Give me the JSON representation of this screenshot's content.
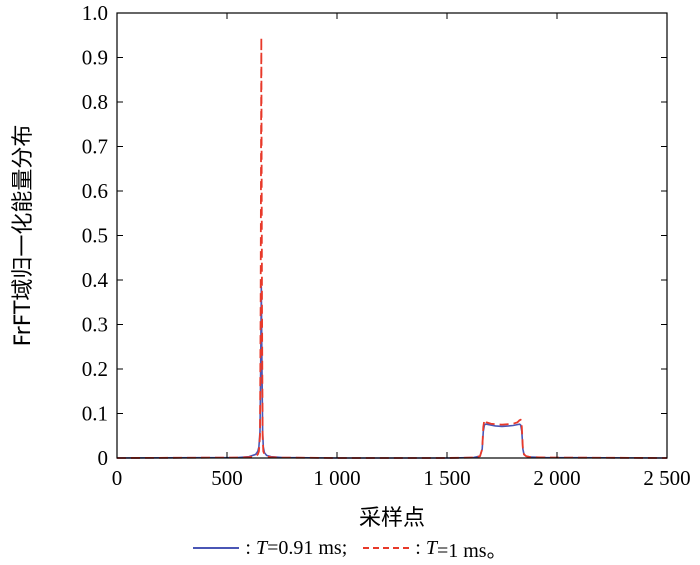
{
  "chart_data": {
    "type": "line",
    "xlabel": "采样点",
    "ylabel": "FrFT域归一化能量分布",
    "xlim": [
      0,
      2500
    ],
    "ylim": [
      0,
      1.0
    ],
    "xticks": [
      0,
      500,
      1000,
      1500,
      2000,
      2500
    ],
    "xtick_labels": [
      "0",
      "500",
      "1 000",
      "1 500",
      "2 000",
      "2 500"
    ],
    "yticks": [
      0,
      0.1,
      0.2,
      0.3,
      0.4,
      0.5,
      0.6,
      0.7,
      0.8,
      0.9,
      1.0
    ],
    "ytick_labels": [
      "0",
      "0.1",
      "0.2",
      "0.3",
      "0.4",
      "0.5",
      "0.6",
      "0.7",
      "0.8",
      "0.9",
      "1.0"
    ],
    "grid": false,
    "legend_position": "bottom",
    "series": [
      {
        "name": "T=0.91 ms",
        "legend_prefix": ": ",
        "legend_italic": "T",
        "legend_rest": "=0.91 ms;",
        "color": "#4a56b5",
        "dash": "solid",
        "x": [
          0,
          550,
          600,
          630,
          640,
          645,
          650,
          653,
          656,
          659,
          662,
          665,
          670,
          680,
          700,
          750,
          1000,
          1500,
          1620,
          1650,
          1660,
          1665,
          1670,
          1675,
          1680,
          1700,
          1720,
          1750,
          1780,
          1800,
          1820,
          1830,
          1835,
          1840,
          1845,
          1850,
          1860,
          1880,
          1950,
          2500
        ],
        "y": [
          0.0,
          0.001,
          0.003,
          0.008,
          0.015,
          0.025,
          0.06,
          0.2,
          0.385,
          0.2,
          0.06,
          0.025,
          0.012,
          0.006,
          0.003,
          0.001,
          0.0,
          0.0,
          0.001,
          0.004,
          0.02,
          0.06,
          0.074,
          0.076,
          0.076,
          0.074,
          0.072,
          0.071,
          0.072,
          0.073,
          0.075,
          0.076,
          0.074,
          0.06,
          0.02,
          0.008,
          0.004,
          0.002,
          0.001,
          0.0
        ]
      },
      {
        "name": "T=1 ms",
        "legend_prefix": ": ",
        "legend_italic": "T",
        "legend_rest": "=1 ms。",
        "color": "#e8392a",
        "dash": "dashed",
        "x": [
          0,
          550,
          600,
          630,
          640,
          645,
          650,
          653,
          656,
          659,
          662,
          665,
          670,
          680,
          700,
          750,
          1000,
          1500,
          1620,
          1650,
          1660,
          1665,
          1670,
          1675,
          1680,
          1700,
          1720,
          1750,
          1780,
          1800,
          1820,
          1830,
          1835,
          1840,
          1845,
          1850,
          1860,
          1880,
          1950,
          2500
        ],
        "y": [
          0.0,
          0.001,
          0.002,
          0.004,
          0.008,
          0.015,
          0.05,
          0.35,
          0.945,
          0.35,
          0.05,
          0.015,
          0.008,
          0.004,
          0.002,
          0.001,
          0.0,
          0.0,
          0.001,
          0.004,
          0.02,
          0.07,
          0.086,
          0.084,
          0.08,
          0.077,
          0.076,
          0.075,
          0.076,
          0.077,
          0.08,
          0.085,
          0.086,
          0.07,
          0.02,
          0.008,
          0.004,
          0.002,
          0.001,
          0.0
        ]
      }
    ]
  }
}
